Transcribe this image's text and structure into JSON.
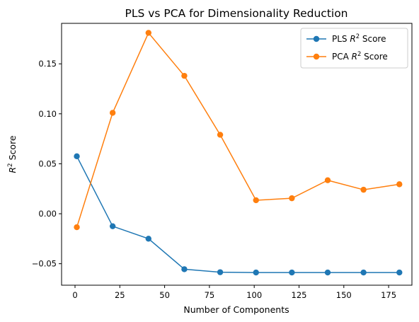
{
  "chart_data": {
    "type": "line",
    "title": "PLS vs PCA for Dimensionality Reduction",
    "xlabel": "Number of Components",
    "ylabel": "R2 Score",
    "xlim": [
      -7.5,
      188
    ],
    "ylim": [
      -0.0715,
      0.1905
    ],
    "xticks": [
      {
        "value": 0,
        "label": "0"
      },
      {
        "value": 25,
        "label": "25"
      },
      {
        "value": 50,
        "label": "50"
      },
      {
        "value": 75,
        "label": "75"
      },
      {
        "value": 100,
        "label": "100"
      },
      {
        "value": 125,
        "label": "125"
      },
      {
        "value": 150,
        "label": "150"
      },
      {
        "value": 175,
        "label": "175"
      }
    ],
    "yticks": [
      {
        "value": -0.05,
        "label": "−0.05"
      },
      {
        "value": 0.0,
        "label": "0.00"
      },
      {
        "value": 0.05,
        "label": "0.05"
      },
      {
        "value": 0.1,
        "label": "0.10"
      },
      {
        "value": 0.15,
        "label": "0.15"
      }
    ],
    "grid": false,
    "legend_position": "top-right",
    "x": [
      1,
      21,
      41,
      61,
      81,
      101,
      121,
      141,
      161,
      181
    ],
    "series": [
      {
        "name": "PLS R2 Score",
        "color": "#1f77b4",
        "marker": "circle",
        "values": [
          0.0575,
          -0.0125,
          -0.025,
          -0.0555,
          -0.0585,
          -0.0588,
          -0.0588,
          -0.0588,
          -0.0588,
          -0.0588
        ]
      },
      {
        "name": "PCA R2 Score",
        "color": "#ff7f0e",
        "marker": "circle",
        "values": [
          -0.0135,
          0.101,
          0.181,
          0.138,
          0.079,
          0.0135,
          0.0155,
          0.0335,
          0.024,
          0.0295
        ]
      }
    ]
  }
}
